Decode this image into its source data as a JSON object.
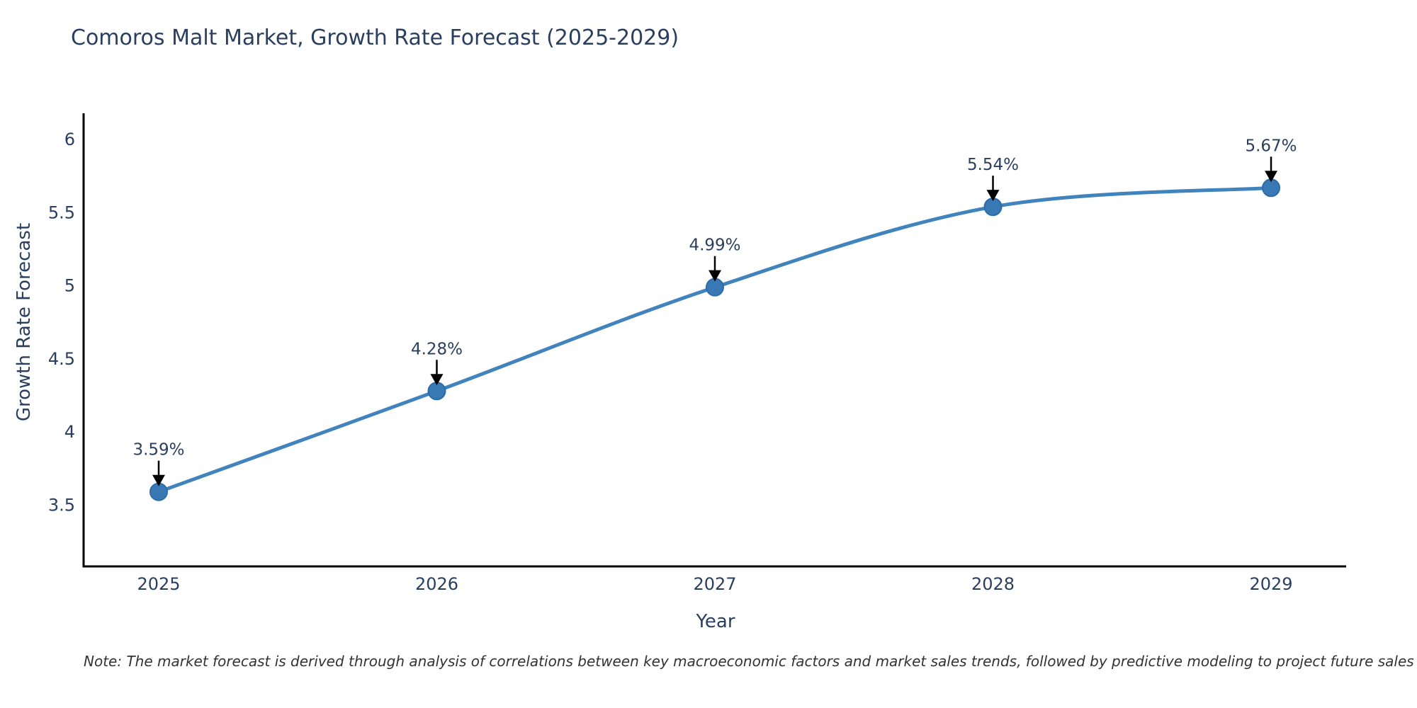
{
  "header": {
    "title": "Comoros Malt Market, Growth Rate Forecast (2025-2029)"
  },
  "chart_data": {
    "type": "line",
    "title": "Comoros Malt Market, Growth Rate Forecast (2025-2029)",
    "x": [
      2025,
      2026,
      2027,
      2028,
      2029
    ],
    "series": [
      {
        "name": "Growth Rate Forecast",
        "values": [
          3.59,
          4.28,
          4.99,
          5.54,
          5.67
        ]
      }
    ],
    "point_labels": [
      "3.59%",
      "4.28%",
      "4.99%",
      "5.54%",
      "5.67%"
    ],
    "xlabel": "Year",
    "ylabel": "Growth Rate Forecast",
    "x_tick_labels": [
      "2025",
      "2026",
      "2027",
      "2028",
      "2029"
    ],
    "y_ticks": [
      3.5,
      4,
      4.5,
      5,
      5.5,
      6
    ],
    "y_tick_labels": [
      "3.5",
      "4",
      "4.5",
      "5",
      "5.5",
      "6"
    ],
    "xlim": [
      2024.73,
      2029.27
    ],
    "ylim": [
      3.08,
      6.18
    ],
    "grid": false,
    "legend": "none",
    "line_shape": "spline",
    "colors": {
      "line": "#4183bd",
      "marker": "#3878b4",
      "marker_edge": "#2d6ca6",
      "arrow": "#000000",
      "axis": "#000000",
      "text": "#2a3f5f",
      "note": "#333333",
      "background": "#ffffff"
    }
  },
  "footnote": {
    "text": "Note: The market forecast is derived through analysis of correlations between key macroeconomic factors and market sales trends, followed by predictive modeling to project future sales"
  }
}
